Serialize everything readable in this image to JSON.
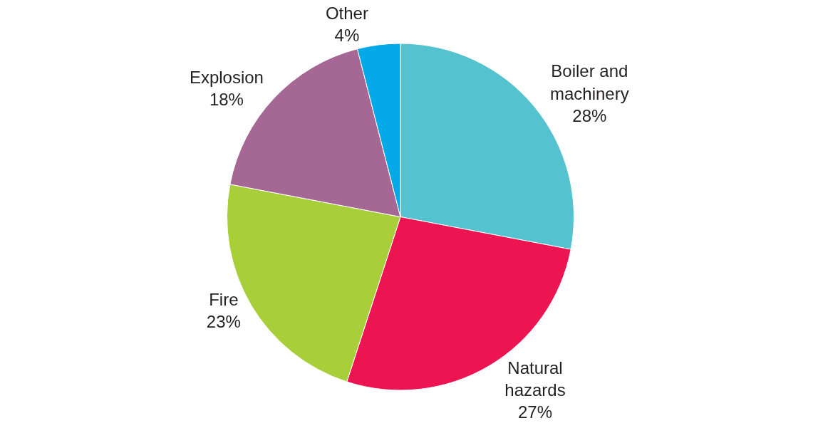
{
  "chart_data": {
    "type": "pie",
    "categories": [
      "Boiler and machinery",
      "Natural hazards",
      "Fire",
      "Explosion",
      "Other"
    ],
    "values": [
      28,
      27,
      23,
      18,
      4
    ],
    "value_labels": [
      "28%",
      "27%",
      "23%",
      "18%",
      "4%"
    ],
    "colors": [
      "#55c3cf",
      "#ec1551",
      "#a8ce3a",
      "#a56894",
      "#05a9e8"
    ],
    "legend": false
  }
}
